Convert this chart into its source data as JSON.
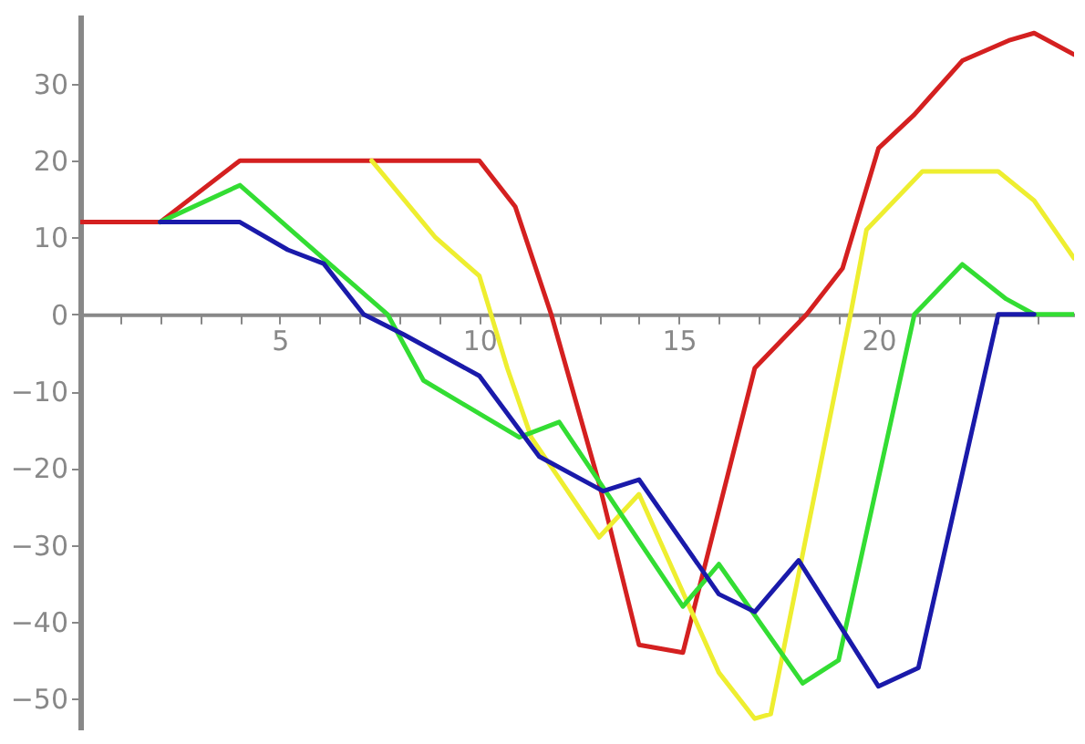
{
  "chart_data": {
    "type": "line",
    "xlim": [
      0,
      24.9
    ],
    "ylim": [
      -54,
      39
    ],
    "xticks": [
      {
        "value": 1,
        "label": null
      },
      {
        "value": 2,
        "label": null
      },
      {
        "value": 3,
        "label": null
      },
      {
        "value": 4,
        "label": null
      },
      5,
      {
        "value": 6,
        "label": null
      },
      {
        "value": 7,
        "label": null
      },
      {
        "value": 8,
        "label": null
      },
      {
        "value": 9,
        "label": null
      },
      10,
      {
        "value": 11,
        "label": null
      },
      {
        "value": 12,
        "label": null
      },
      {
        "value": 13,
        "label": null
      },
      {
        "value": 14,
        "label": null
      },
      15,
      {
        "value": 16,
        "label": null
      },
      {
        "value": 17,
        "label": null
      },
      {
        "value": 18,
        "label": null
      },
      {
        "value": 19,
        "label": null
      },
      20,
      {
        "value": 21,
        "label": null
      },
      {
        "value": 22,
        "label": null
      },
      {
        "value": 23,
        "label": null
      },
      {
        "value": 24,
        "label": null
      }
    ],
    "yticks": [
      -50,
      -40,
      -30,
      -20,
      -10,
      0,
      10,
      20,
      30
    ],
    "grid": false,
    "legend": false,
    "marker": "none",
    "line_style": "solid",
    "series": [
      {
        "color": "#d42020",
        "x": [
          0,
          2,
          4,
          10,
          10.9,
          11.8,
          13,
          14,
          15.1,
          16.9,
          18.2,
          19.1,
          20,
          20.9,
          22.1,
          23.3,
          23.9,
          24.9
        ],
        "values": [
          12,
          12,
          20,
          20,
          14,
          0,
          -22,
          -43,
          -44,
          -7,
          0,
          6,
          21.6,
          26,
          33,
          35.7,
          36.6,
          33.8
        ]
      },
      {
        "color": "#eeee30",
        "x": [
          7.3,
          8.9,
          10,
          10.7,
          11.3,
          13,
          14,
          16,
          16.9,
          17.3,
          19.3,
          19.7,
          21.1,
          23,
          23.9,
          24.9
        ],
        "values": [
          20,
          10,
          5,
          -7,
          -16,
          -29,
          -23.4,
          -46.6,
          -52.6,
          -52,
          0,
          11,
          18.6,
          18.6,
          14.8,
          7.3
        ]
      },
      {
        "color": "#33dd33",
        "x": [
          2,
          4,
          5.6,
          7.7,
          8.6,
          11,
          12,
          15.1,
          16,
          18.1,
          19,
          20.9,
          22.1,
          23.2,
          23.9,
          24.9
        ],
        "values": [
          12,
          16.8,
          9.5,
          0,
          -8.6,
          -16,
          -14,
          -38,
          -32.5,
          -48,
          -45,
          0,
          6.5,
          2,
          0,
          0
        ]
      },
      {
        "color": "#1a1aaa",
        "x": [
          2,
          4,
          5.2,
          6.1,
          7.1,
          8.1,
          10,
          11.5,
          13.1,
          14,
          16,
          16.9,
          18,
          20,
          21,
          23,
          23.9
        ],
        "values": [
          12,
          12,
          8.4,
          6.6,
          0,
          -2.6,
          -8,
          -18.5,
          -23,
          -21.5,
          -36.4,
          -38.7,
          -32,
          -48.4,
          -46,
          0,
          0
        ]
      }
    ]
  }
}
